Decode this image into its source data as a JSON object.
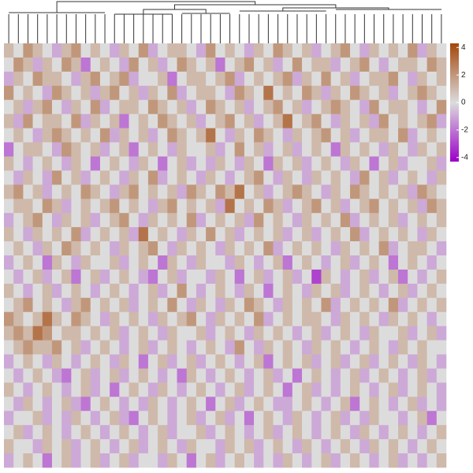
{
  "chart_data": {
    "type": "heatmap",
    "colors": {
      "low": "#9a00c8",
      "mid": "#dcdcdc",
      "high": "#a3470b"
    },
    "zlim": [
      -4.3,
      4.3
    ],
    "colorbar_ticks": [
      4,
      2,
      0,
      -2,
      -4
    ],
    "values": [
      [
        1,
        0,
        2,
        1,
        0,
        -1,
        1,
        2,
        0,
        1,
        0,
        -1,
        1,
        0,
        2,
        -1,
        0,
        1,
        1,
        0,
        -1,
        2,
        0,
        1,
        0,
        -1,
        1,
        0,
        2,
        1,
        0,
        1,
        -1,
        0,
        1,
        2,
        0,
        -1,
        1,
        0,
        1,
        0,
        2,
        -1,
        1,
        0
      ],
      [
        0,
        2,
        1,
        -1,
        1,
        0,
        2,
        1,
        -2,
        0,
        1,
        0,
        -1,
        2,
        0,
        1,
        -1,
        0,
        2,
        1,
        0,
        1,
        -2,
        0,
        1,
        2,
        0,
        1,
        -1,
        0,
        2,
        0,
        1,
        1,
        -1,
        0,
        1,
        2,
        0,
        -1,
        0,
        1,
        1,
        0,
        2,
        1
      ],
      [
        -1,
        1,
        0,
        2,
        1,
        1,
        0,
        -1,
        1,
        2,
        0,
        1,
        2,
        -1,
        0,
        0,
        1,
        -2,
        0,
        1,
        1,
        0,
        1,
        2,
        -1,
        0,
        1,
        0,
        1,
        2,
        -1,
        1,
        0,
        2,
        0,
        1,
        -1,
        0,
        1,
        1,
        2,
        0,
        -1,
        1,
        0,
        1
      ],
      [
        2,
        0,
        1,
        0,
        -1,
        2,
        1,
        0,
        1,
        -1,
        1,
        2,
        0,
        1,
        -1,
        1,
        0,
        2,
        -1,
        0,
        1,
        1,
        0,
        -1,
        2,
        1,
        0,
        3,
        0,
        1,
        0,
        2,
        1,
        -1,
        1,
        0,
        2,
        1,
        0,
        1,
        -1,
        0,
        1,
        2,
        1,
        0
      ],
      [
        0,
        1,
        -1,
        1,
        2,
        0,
        -1,
        1,
        0,
        2,
        -1,
        0,
        1,
        1,
        0,
        2,
        1,
        0,
        1,
        -1,
        0,
        2,
        1,
        0,
        1,
        -1,
        0,
        1,
        2,
        0,
        1,
        -1,
        0,
        1,
        2,
        1,
        0,
        -1,
        2,
        0,
        1,
        1,
        0,
        -1,
        0,
        2
      ],
      [
        1,
        -1,
        2,
        0,
        1,
        1,
        0,
        2,
        -1,
        1,
        0,
        1,
        -2,
        0,
        1,
        0,
        2,
        1,
        0,
        1,
        -1,
        0,
        1,
        2,
        0,
        1,
        -1,
        0,
        1,
        3,
        0,
        1,
        2,
        0,
        -1,
        1,
        0,
        1,
        -1,
        2,
        0,
        1,
        0,
        1,
        2,
        -1
      ],
      [
        0,
        1,
        0,
        -1,
        1,
        2,
        1,
        0,
        1,
        0,
        2,
        -1,
        1,
        0,
        1,
        -1,
        0,
        2,
        1,
        0,
        1,
        3,
        0,
        -1,
        1,
        0,
        2,
        1,
        0,
        -1,
        1,
        0,
        1,
        2,
        0,
        1,
        -1,
        0,
        1,
        1,
        0,
        2,
        -1,
        0,
        1,
        0
      ],
      [
        -2,
        0,
        1,
        1,
        0,
        -1,
        2,
        1,
        0,
        1,
        -1,
        0,
        1,
        -2,
        0,
        1,
        0,
        -1,
        1,
        0,
        0,
        1,
        -1,
        0,
        2,
        0,
        1,
        -1,
        0,
        1,
        -1,
        0,
        1,
        0,
        -2,
        1,
        0,
        1,
        0,
        -1,
        1,
        0,
        -1,
        1,
        0,
        1
      ],
      [
        1,
        0,
        -1,
        0,
        1,
        0,
        -1,
        1,
        0,
        -2,
        0,
        1,
        0,
        -1,
        1,
        0,
        -2,
        0,
        1,
        -1,
        0,
        -1,
        1,
        0,
        -1,
        1,
        0,
        -2,
        1,
        0,
        1,
        -1,
        0,
        1,
        0,
        -1,
        1,
        0,
        -2,
        0,
        1,
        -1,
        0,
        0,
        1,
        -1
      ],
      [
        0,
        -1,
        1,
        0,
        -1,
        2,
        0,
        1,
        -1,
        0,
        1,
        0,
        -1,
        1,
        0,
        2,
        -1,
        0,
        1,
        0,
        -1,
        1,
        0,
        -1,
        0,
        1,
        2,
        0,
        -1,
        1,
        0,
        -1,
        1,
        0,
        1,
        0,
        -1,
        2,
        0,
        1,
        -1,
        0,
        1,
        0,
        -1,
        1
      ],
      [
        1,
        2,
        0,
        1,
        -1,
        0,
        1,
        0,
        2,
        1,
        0,
        -1,
        1,
        2,
        0,
        1,
        0,
        1,
        -1,
        2,
        1,
        0,
        2,
        1,
        3,
        0,
        1,
        -1,
        0,
        1,
        2,
        1,
        0,
        -1,
        1,
        0,
        2,
        1,
        0,
        1,
        0,
        1,
        -1,
        2,
        1,
        0
      ],
      [
        0,
        1,
        1,
        0,
        2,
        1,
        -1,
        0,
        1,
        0,
        1,
        2,
        0,
        1,
        0,
        -1,
        1,
        2,
        0,
        1,
        0,
        1,
        -1,
        3,
        0,
        1,
        0,
        2,
        1,
        -1,
        0,
        1,
        2,
        0,
        1,
        -1,
        0,
        1,
        2,
        0,
        1,
        0,
        1,
        -1,
        2,
        1
      ],
      [
        -1,
        0,
        1,
        2,
        0,
        -1,
        1,
        0,
        1,
        -1,
        0,
        1,
        2,
        0,
        -1,
        1,
        0,
        1,
        0,
        2,
        -1,
        0,
        1,
        0,
        1,
        -1,
        2,
        0,
        1,
        0,
        -1,
        1,
        0,
        1,
        0,
        2,
        -1,
        0,
        1,
        0,
        1,
        -1,
        0,
        1,
        0,
        1
      ],
      [
        1,
        0,
        -1,
        1,
        0,
        1,
        0,
        2,
        -1,
        0,
        1,
        0,
        1,
        -1,
        3,
        0,
        1,
        0,
        -1,
        1,
        0,
        2,
        0,
        1,
        -1,
        0,
        1,
        0,
        1,
        -1,
        0,
        1,
        -1,
        0,
        1,
        0,
        2,
        -1,
        0,
        1,
        0,
        1,
        0,
        -1,
        1,
        0
      ],
      [
        0,
        1,
        0,
        -1,
        1,
        0,
        2,
        1,
        0,
        1,
        0,
        -1,
        1,
        0,
        1,
        2,
        0,
        -1,
        1,
        0,
        1,
        0,
        -1,
        1,
        0,
        1,
        0,
        2,
        -1,
        0,
        1,
        0,
        1,
        0,
        -1,
        1,
        0,
        1,
        0,
        2,
        -1,
        0,
        1,
        1,
        0,
        -1
      ],
      [
        -1,
        0,
        1,
        0,
        -2,
        1,
        0,
        -1,
        1,
        0,
        0,
        1,
        -1,
        0,
        1,
        0,
        -2,
        1,
        0,
        -1,
        1,
        0,
        0,
        -1,
        1,
        0,
        -1,
        0,
        1,
        -2,
        0,
        1,
        0,
        -1,
        0,
        1,
        -1,
        0,
        1,
        0,
        -2,
        0,
        1,
        0,
        -1,
        0
      ],
      [
        0,
        -1,
        0,
        1,
        -1,
        0,
        1,
        -2,
        0,
        1,
        -1,
        0,
        1,
        0,
        -1,
        -2,
        0,
        1,
        -1,
        0,
        0,
        -1,
        1,
        0,
        -2,
        0,
        1,
        -1,
        0,
        1,
        -1,
        0,
        -3,
        1,
        0,
        -1,
        0,
        1,
        -1,
        0,
        1,
        -2,
        0,
        -1,
        0,
        1
      ],
      [
        1,
        0,
        -1,
        0,
        1,
        -1,
        0,
        1,
        0,
        -1,
        0,
        1,
        0,
        -1,
        0,
        1,
        -1,
        0,
        2,
        0,
        -1,
        0,
        1,
        0,
        -1,
        1,
        0,
        -2,
        0,
        1,
        0,
        -1,
        1,
        0,
        1,
        -1,
        0,
        1,
        0,
        -1,
        0,
        1,
        -1,
        0,
        1,
        0
      ],
      [
        0,
        1,
        2,
        0,
        1,
        0,
        -1,
        1,
        2,
        0,
        1,
        0,
        1,
        -1,
        0,
        1,
        0,
        2,
        0,
        -1,
        1,
        0,
        -1,
        1,
        0,
        2,
        1,
        0,
        -1,
        1,
        0,
        1,
        0,
        2,
        -1,
        0,
        1,
        0,
        1,
        0,
        2,
        -1,
        0,
        1,
        0,
        1
      ],
      [
        2,
        1,
        0,
        1,
        3,
        1,
        0,
        2,
        1,
        0,
        -1,
        1,
        0,
        1,
        0,
        -1,
        1,
        0,
        1,
        2,
        0,
        -1,
        1,
        0,
        1,
        0,
        2,
        -1,
        0,
        1,
        0,
        1,
        1,
        0,
        -1,
        1,
        0,
        1,
        0,
        -1,
        1,
        0,
        1,
        0,
        -1,
        0
      ],
      [
        1,
        2,
        1,
        3,
        2,
        0,
        1,
        1,
        0,
        1,
        0,
        1,
        -1,
        0,
        1,
        0,
        -1,
        1,
        0,
        0,
        1,
        -1,
        0,
        1,
        0,
        -1,
        1,
        0,
        1,
        0,
        -1,
        0,
        1,
        -1,
        0,
        1,
        0,
        -1,
        1,
        0,
        0,
        1,
        -1,
        0,
        1,
        -1
      ],
      [
        0,
        1,
        2,
        1,
        1,
        2,
        0,
        1,
        -1,
        0,
        1,
        0,
        -1,
        0,
        1,
        -1,
        0,
        1,
        0,
        -1,
        0,
        1,
        0,
        -1,
        2,
        0,
        -1,
        1,
        0,
        1,
        0,
        -1,
        1,
        0,
        1,
        0,
        -1,
        0,
        1,
        0,
        -1,
        1,
        0,
        1,
        0,
        0
      ],
      [
        -1,
        0,
        1,
        0,
        -1,
        1,
        0,
        -1,
        0,
        1,
        0,
        -1,
        1,
        0,
        -2,
        0,
        1,
        -1,
        0,
        1,
        -1,
        0,
        1,
        0,
        -1,
        0,
        1,
        -2,
        0,
        1,
        0,
        1,
        -1,
        0,
        1,
        -1,
        0,
        1,
        -1,
        0,
        1,
        0,
        -1,
        1,
        0,
        -1
      ],
      [
        0,
        -1,
        0,
        1,
        0,
        -1,
        -2,
        0,
        1,
        -1,
        0,
        1,
        -1,
        0,
        1,
        0,
        -1,
        0,
        -2,
        1,
        0,
        -1,
        0,
        1,
        0,
        -1,
        0,
        1,
        -1,
        0,
        -2,
        0,
        1,
        0,
        -1,
        0,
        1,
        -1,
        0,
        1,
        0,
        -1,
        0,
        1,
        -1,
        0
      ],
      [
        1,
        0,
        -1,
        0,
        1,
        0,
        -1,
        0,
        1,
        -1,
        0,
        -2,
        0,
        1,
        0,
        -1,
        1,
        0,
        -1,
        0,
        1,
        0,
        -1,
        0,
        1,
        -1,
        0,
        1,
        0,
        -2,
        0,
        1,
        -1,
        0,
        -1,
        0,
        1,
        0,
        -1,
        0,
        1,
        -1,
        0,
        1,
        0,
        -1
      ],
      [
        0,
        -1,
        1,
        0,
        -1,
        0,
        1,
        -1,
        -2,
        0,
        1,
        0,
        -1,
        0,
        -1,
        1,
        0,
        -1,
        0,
        1,
        0,
        -2,
        0,
        1,
        -1,
        0,
        1,
        0,
        -1,
        -1,
        0,
        1,
        0,
        -1,
        0,
        1,
        -2,
        0,
        1,
        0,
        -1,
        0,
        1,
        -1,
        0,
        -1
      ],
      [
        -1,
        0,
        0,
        1,
        -1,
        0,
        -1,
        1,
        0,
        -1,
        0,
        1,
        -1,
        -2,
        0,
        1,
        0,
        -1,
        0,
        1,
        -1,
        0,
        1,
        -1,
        0,
        -2,
        0,
        1,
        0,
        -1,
        1,
        0,
        -1,
        0,
        1,
        -1,
        0,
        -1,
        1,
        0,
        0,
        -1,
        0,
        1,
        -2,
        0
      ],
      [
        0,
        1,
        -1,
        0,
        1,
        0,
        -1,
        0,
        1,
        0,
        -1,
        0,
        1,
        0,
        -1,
        0,
        1,
        -1,
        0,
        0,
        1,
        -1,
        0,
        1,
        0,
        -1,
        0,
        1,
        -1,
        0,
        1,
        0,
        -1,
        0,
        1,
        0,
        -1,
        1,
        0,
        -1,
        0,
        1,
        0,
        -1,
        0,
        1
      ],
      [
        1,
        0,
        0,
        -1,
        1,
        0,
        1,
        -1,
        0,
        1,
        0,
        -1,
        0,
        1,
        -1,
        0,
        1,
        0,
        -1,
        1,
        0,
        0,
        -1,
        1,
        0,
        1,
        -1,
        0,
        1,
        0,
        -1,
        1,
        0,
        -1,
        0,
        1,
        0,
        -1,
        1,
        0,
        1,
        0,
        -1,
        0,
        1,
        0
      ],
      [
        -1,
        0,
        1,
        0,
        -2,
        0,
        1,
        -1,
        0,
        1,
        -1,
        0,
        1,
        -1,
        0,
        0,
        -1,
        1,
        0,
        -2,
        0,
        1,
        -1,
        0,
        1,
        0,
        -1,
        0,
        -1,
        1,
        0,
        -1,
        0,
        1,
        -1,
        0,
        1,
        0,
        -1,
        0,
        1,
        -1,
        0,
        -1,
        0,
        1
      ]
    ]
  }
}
